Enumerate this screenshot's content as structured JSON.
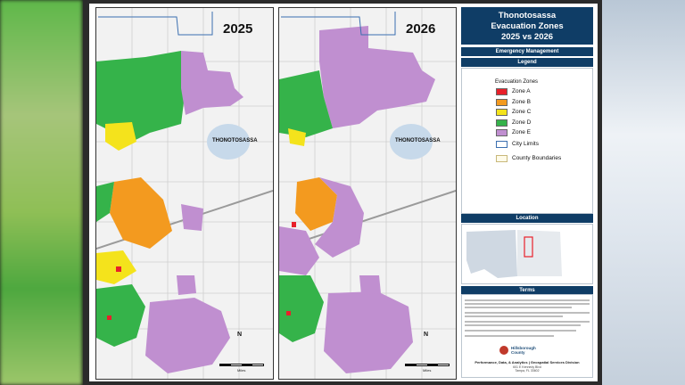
{
  "title": {
    "line1": "Thonotosassa",
    "line2": "Evacuation Zones",
    "line3": "2025 vs 2026"
  },
  "subtitle": "Emergency Management",
  "sections": {
    "legend": "Legend",
    "location": "Location",
    "terms": "Terms"
  },
  "legend": {
    "heading": "Evacuation Zones",
    "zones": [
      {
        "label": "Zone A",
        "color": "#e8202a"
      },
      {
        "label": "Zone B",
        "color": "#f39a1f"
      },
      {
        "label": "Zone C",
        "color": "#f4e31c"
      },
      {
        "label": "Zone D",
        "color": "#35b34a"
      },
      {
        "label": "Zone E",
        "color": "#c08fd0"
      }
    ],
    "city_limits": "City Limits",
    "county_boundaries": "County Boundaries"
  },
  "maps": [
    {
      "year": "2025",
      "place_label": "THONOTOSASSA"
    },
    {
      "year": "2026",
      "place_label": "THONOTOSASSA"
    }
  ],
  "north_label": "N",
  "scale_label": "Miles",
  "org": {
    "logo_line1": "Hillsborough",
    "logo_line2": "County",
    "division": "Performance, Data, & Analytics | Geospatial Services Division",
    "addr1": "601 E Kennedy Blvd",
    "addr2": "Tampa, FL 33602"
  }
}
